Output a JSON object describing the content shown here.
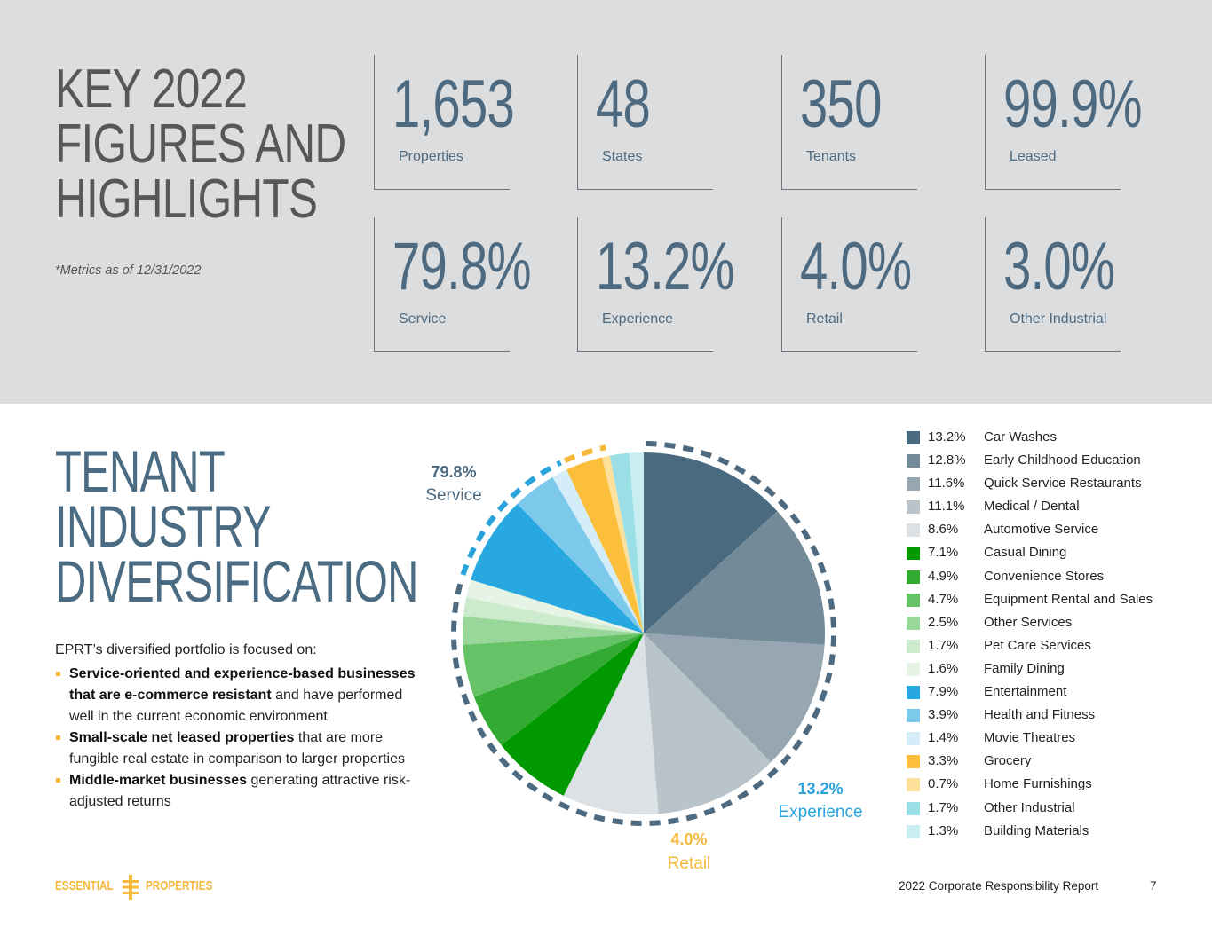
{
  "header": {
    "title_line1": "KEY 2022",
    "title_line2": "FIGURES AND",
    "title_line3": "HIGHLIGHTS",
    "metrics_note": "*Metrics as of 12/31/2022"
  },
  "stats": [
    {
      "value": "1,653",
      "label": "Properties"
    },
    {
      "value": "48",
      "label": "States"
    },
    {
      "value": "350",
      "label": "Tenants"
    },
    {
      "value": "99.9%",
      "label": "Leased"
    },
    {
      "value": "79.8%",
      "label": "Service"
    },
    {
      "value": "13.2%",
      "label": "Experience"
    },
    {
      "value": "4.0%",
      "label": "Retail"
    },
    {
      "value": "3.0%",
      "label": "Other Industrial"
    }
  ],
  "tenant": {
    "title_line1": "TENANT",
    "title_line2": "INDUSTRY",
    "title_line3": "DIVERSIFICATION",
    "intro": "EPRT’s diversified portfolio is focused on:",
    "bullets": [
      {
        "bold": "Service-oriented and experience-based businesses that are e-commerce resistant",
        "rest": " and have performed well in the current economic environment"
      },
      {
        "bold": "Small-scale net leased properties",
        "rest": " that are more fungible real estate in comparison to larger properties"
      },
      {
        "bold": "Middle-market businesses",
        "rest": " generating attractive risk-adjusted returns"
      }
    ]
  },
  "callouts": {
    "service": {
      "pct": "79.8%",
      "label": "Service",
      "color": "#4d6a80"
    },
    "experience": {
      "pct": "13.2%",
      "label": "Experience",
      "color": "#2aa3dc"
    },
    "retail": {
      "pct": "4.0%",
      "label": "Retail",
      "color": "#f6b83a"
    }
  },
  "chart_data": {
    "type": "pie",
    "slices": [
      {
        "label": "Car Washes",
        "value": 13.2,
        "pct_text": "13.2%",
        "color": "#4a6a7f",
        "group": "service"
      },
      {
        "label": "Early Childhood Education",
        "value": 12.8,
        "pct_text": "12.8%",
        "color": "#738a98",
        "group": "service"
      },
      {
        "label": "Quick Service Restaurants",
        "value": 11.6,
        "pct_text": "11.6%",
        "color": "#96a7b2",
        "group": "service"
      },
      {
        "label": "Medical / Dental",
        "value": 11.1,
        "pct_text": "11.1%",
        "color": "#b8c3ca",
        "group": "service"
      },
      {
        "label": "Automotive Service",
        "value": 8.6,
        "pct_text": "8.6%",
        "color": "#dce1e5",
        "group": "service"
      },
      {
        "label": "Casual Dining",
        "value": 7.1,
        "pct_text": "7.1%",
        "color": "#009a00",
        "group": "service"
      },
      {
        "label": "Convenience Stores",
        "value": 4.9,
        "pct_text": "4.9%",
        "color": "#33ab33",
        "group": "service"
      },
      {
        "label": "Equipment Rental and Sales",
        "value": 4.7,
        "pct_text": "4.7%",
        "color": "#66c266",
        "group": "service"
      },
      {
        "label": "Other Services",
        "value": 2.5,
        "pct_text": "2.5%",
        "color": "#99d699",
        "group": "service"
      },
      {
        "label": "Pet Care Services",
        "value": 1.7,
        "pct_text": "1.7%",
        "color": "#cceacc",
        "group": "service"
      },
      {
        "label": "Family Dining",
        "value": 1.6,
        "pct_text": "1.6%",
        "color": "#e5f4e5",
        "group": "service"
      },
      {
        "label": "Entertainment",
        "value": 7.9,
        "pct_text": "7.9%",
        "color": "#27a8e0",
        "group": "experience"
      },
      {
        "label": "Health and Fitness",
        "value": 3.9,
        "pct_text": "3.9%",
        "color": "#7dc9ec",
        "group": "experience"
      },
      {
        "label": "Movie Theatres",
        "value": 1.4,
        "pct_text": "1.4%",
        "color": "#d4edf9",
        "group": "experience"
      },
      {
        "label": "Grocery",
        "value": 3.3,
        "pct_text": "3.3%",
        "color": "#fbbf3c",
        "group": "retail"
      },
      {
        "label": "Home Furnishings",
        "value": 0.7,
        "pct_text": "0.7%",
        "color": "#fde19b",
        "group": "retail"
      },
      {
        "label": "Other Industrial",
        "value": 1.7,
        "pct_text": "1.7%",
        "color": "#9adfe5",
        "group": "industrial"
      },
      {
        "label": "Building Materials",
        "value": 1.3,
        "pct_text": "1.3%",
        "color": "#c9eef1",
        "group": "industrial"
      }
    ],
    "group_rings": [
      {
        "group": "service",
        "value": 79.8,
        "color": "#4d6a80"
      },
      {
        "group": "experience",
        "value": 13.2,
        "color": "#2aa3dc"
      },
      {
        "group": "retail",
        "value": 4.0,
        "color": "#f6b83a"
      }
    ]
  },
  "footer": {
    "logo_left": "ESSENTIAL",
    "logo_right": "PROPERTIES",
    "report": "2022 Corporate Responsibility Report",
    "page": "7",
    "brand_color": "#f6b83a"
  }
}
